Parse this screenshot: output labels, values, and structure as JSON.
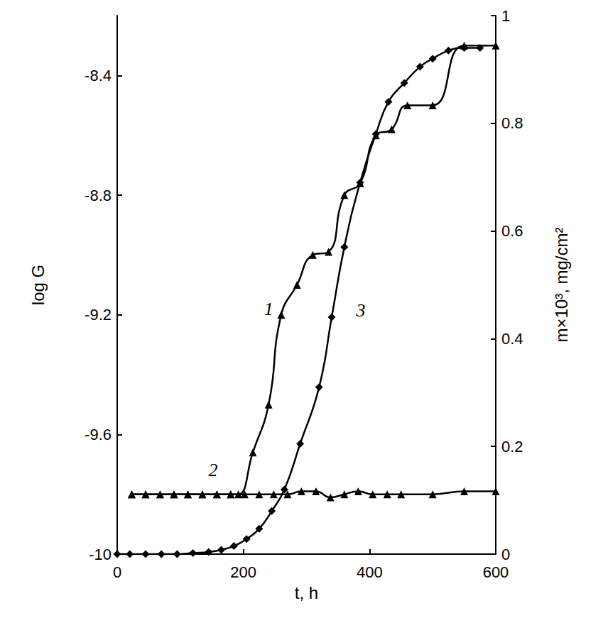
{
  "chart_data": {
    "type": "line",
    "x_label": "t, h",
    "y_label": "log G",
    "y2_label": "m×10³, mg/cm²",
    "xlim": [
      0,
      600
    ],
    "xticks": [
      0,
      200,
      400,
      600
    ],
    "ylim": [
      -10,
      -8.2
    ],
    "yticks": [
      -10,
      -9.6,
      -9.2,
      -8.8,
      -8.4
    ],
    "y2lim": [
      0,
      1
    ],
    "y2ticks": [
      0,
      0.2,
      0.4,
      0.6,
      0.8,
      1
    ],
    "grid": false,
    "series": [
      {
        "name": "1",
        "color": "#000000",
        "marker": "triangle",
        "line_style": "solid",
        "axis": "y",
        "name_at": [
          240,
          -9.18
        ],
        "x": [
          23,
          45,
          68,
          90,
          112,
          135,
          158,
          180,
          192,
          215,
          240,
          260,
          285,
          310,
          335,
          360,
          385,
          410,
          435,
          460,
          500,
          550,
          600
        ],
        "values": [
          -9.8,
          -9.8,
          -9.8,
          -9.8,
          -9.8,
          -9.8,
          -9.8,
          -9.8,
          -9.8,
          -9.66,
          -9.5,
          -9.2,
          -9.1,
          -9.0,
          -8.99,
          -8.8,
          -8.76,
          -8.6,
          -8.58,
          -8.5,
          -8.5,
          -8.3,
          -8.3
        ]
      },
      {
        "name": "2",
        "color": "#000000",
        "marker": "triangle",
        "line_style": "solid",
        "axis": "y",
        "name_at": [
          152,
          -9.72
        ],
        "x": [
          23,
          45,
          68,
          90,
          112,
          135,
          158,
          180,
          202,
          225,
          248,
          270,
          292,
          315,
          338,
          360,
          382,
          405,
          428,
          450,
          500,
          550,
          600
        ],
        "values": [
          -9.8,
          -9.8,
          -9.8,
          -9.8,
          -9.8,
          -9.8,
          -9.8,
          -9.8,
          -9.8,
          -9.8,
          -9.8,
          -9.8,
          -9.79,
          -9.79,
          -9.81,
          -9.8,
          -9.79,
          -9.8,
          -9.8,
          -9.8,
          -9.8,
          -9.79,
          -9.79
        ]
      },
      {
        "name": "3",
        "color": "#000000",
        "marker": "diamond",
        "line_style": "solid",
        "axis": "y2",
        "name_at": [
          386,
          0.453
        ],
        "x": [
          0,
          20,
          45,
          70,
          95,
          120,
          145,
          165,
          185,
          205,
          225,
          245,
          265,
          290,
          320,
          340,
          360,
          385,
          410,
          430,
          455,
          480,
          500,
          525,
          550,
          575
        ],
        "values": [
          0,
          0,
          0,
          0,
          0,
          0.002,
          0.004,
          0.008,
          0.015,
          0.028,
          0.047,
          0.08,
          0.12,
          0.205,
          0.31,
          0.44,
          0.57,
          0.69,
          0.78,
          0.84,
          0.875,
          0.905,
          0.92,
          0.935,
          0.94,
          0.94
        ]
      }
    ]
  }
}
